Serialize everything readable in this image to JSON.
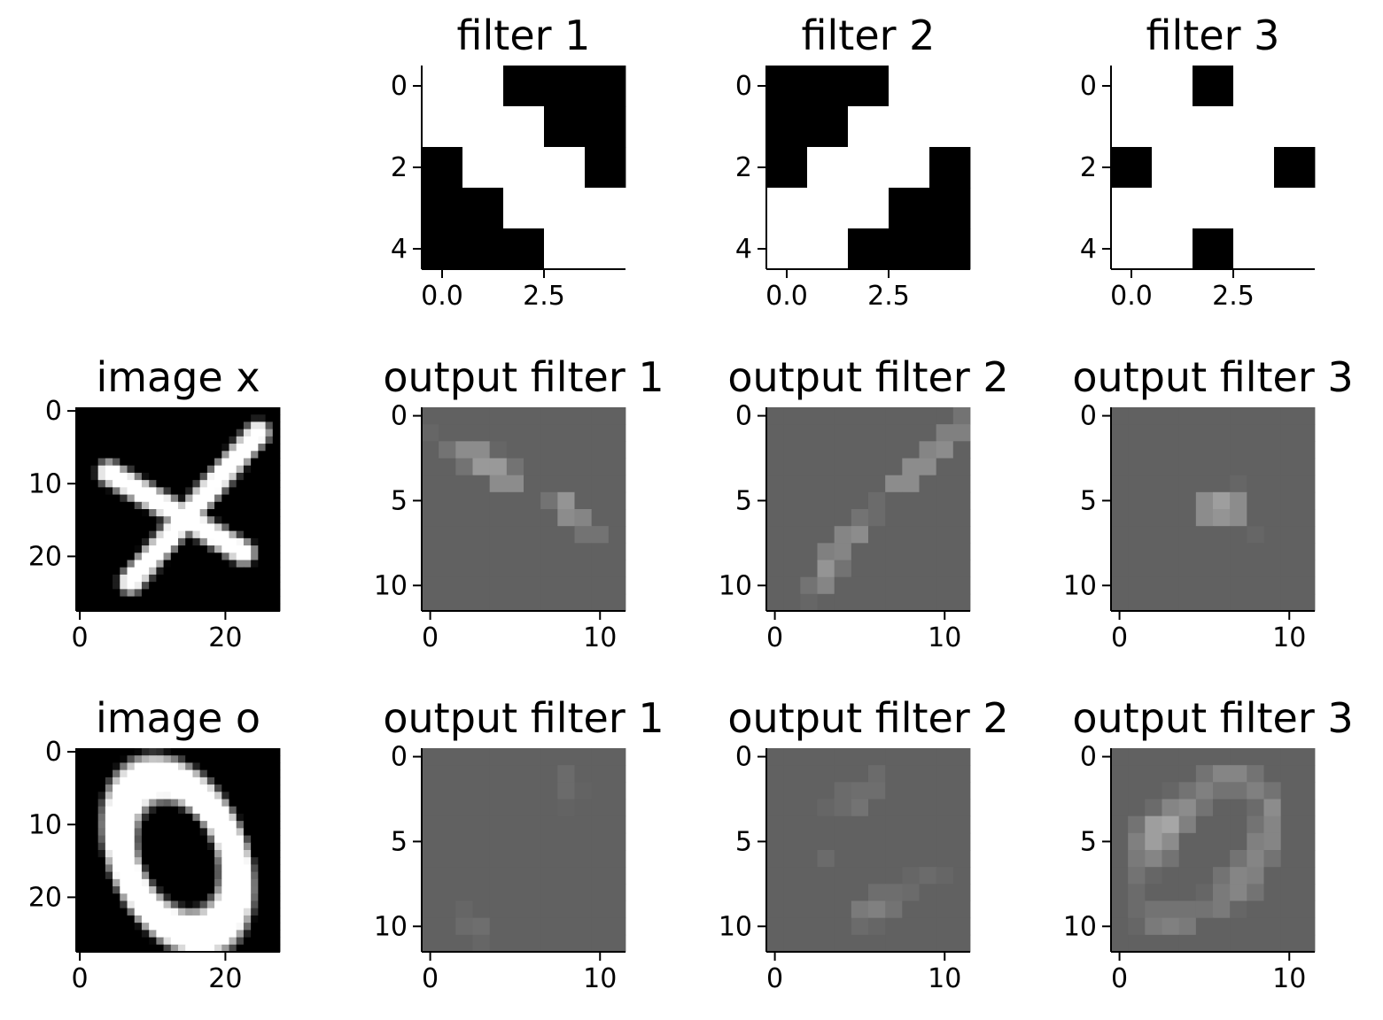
{
  "colors": {
    "background": "#ffffff",
    "ink": "#000000"
  },
  "chart_data": [
    {
      "type": "heatmap",
      "title": "filter 1",
      "colormap": "gray",
      "xticks": [
        "0.0",
        "2.5"
      ],
      "yticks": [
        "0",
        "2",
        "4"
      ],
      "values": [
        [
          1,
          1,
          0,
          0,
          0
        ],
        [
          1,
          1,
          1,
          0,
          0
        ],
        [
          0,
          1,
          1,
          1,
          0
        ],
        [
          0,
          0,
          1,
          1,
          1
        ],
        [
          0,
          0,
          0,
          1,
          1
        ]
      ]
    },
    {
      "type": "heatmap",
      "title": "filter 2",
      "colormap": "gray",
      "xticks": [
        "0.0",
        "2.5"
      ],
      "yticks": [
        "0",
        "2",
        "4"
      ],
      "values": [
        [
          0,
          0,
          0,
          1,
          1
        ],
        [
          0,
          0,
          1,
          1,
          1
        ],
        [
          0,
          1,
          1,
          1,
          0
        ],
        [
          1,
          1,
          1,
          0,
          0
        ],
        [
          1,
          1,
          0,
          0,
          0
        ]
      ]
    },
    {
      "type": "heatmap",
      "title": "filter 3",
      "colormap": "gray",
      "xticks": [
        "0.0",
        "2.5"
      ],
      "yticks": [
        "0",
        "2",
        "4"
      ],
      "values": [
        [
          1,
          1,
          0,
          1,
          1
        ],
        [
          1,
          1,
          1,
          1,
          1
        ],
        [
          0,
          1,
          1,
          1,
          0
        ],
        [
          1,
          1,
          1,
          1,
          1
        ],
        [
          1,
          1,
          0,
          1,
          1
        ]
      ]
    },
    {
      "type": "heatmap",
      "title": "image x",
      "colormap": "gray",
      "image": "x",
      "xticks": [
        "0",
        "20"
      ],
      "yticks": [
        "0",
        "10",
        "20"
      ]
    },
    {
      "type": "heatmap",
      "title": "output filter 1",
      "colormap": "gray",
      "xticks": [
        "0",
        "10"
      ],
      "yticks": [
        "0",
        "5",
        "10"
      ],
      "values": [
        [
          0.38,
          0.38,
          0.38,
          0.38,
          0.38,
          0.38,
          0.38,
          0.38,
          0.38,
          0.38,
          0.38,
          0.38
        ],
        [
          0.4,
          0.38,
          0.38,
          0.38,
          0.38,
          0.38,
          0.38,
          0.38,
          0.38,
          0.38,
          0.38,
          0.38
        ],
        [
          0.38,
          0.45,
          0.55,
          0.55,
          0.4,
          0.38,
          0.38,
          0.38,
          0.38,
          0.38,
          0.38,
          0.38
        ],
        [
          0.38,
          0.38,
          0.45,
          0.6,
          0.6,
          0.45,
          0.38,
          0.38,
          0.38,
          0.38,
          0.38,
          0.38
        ],
        [
          0.38,
          0.38,
          0.38,
          0.38,
          0.55,
          0.55,
          0.38,
          0.38,
          0.38,
          0.38,
          0.38,
          0.38
        ],
        [
          0.38,
          0.38,
          0.38,
          0.38,
          0.38,
          0.38,
          0.38,
          0.45,
          0.58,
          0.38,
          0.38,
          0.38
        ],
        [
          0.38,
          0.38,
          0.38,
          0.38,
          0.38,
          0.38,
          0.38,
          0.38,
          0.55,
          0.52,
          0.38,
          0.38
        ],
        [
          0.38,
          0.38,
          0.38,
          0.38,
          0.38,
          0.38,
          0.38,
          0.38,
          0.38,
          0.45,
          0.45,
          0.38
        ],
        [
          0.38,
          0.38,
          0.38,
          0.38,
          0.38,
          0.38,
          0.38,
          0.38,
          0.38,
          0.38,
          0.38,
          0.38
        ],
        [
          0.38,
          0.38,
          0.38,
          0.38,
          0.38,
          0.38,
          0.38,
          0.38,
          0.38,
          0.38,
          0.38,
          0.38
        ],
        [
          0.38,
          0.38,
          0.38,
          0.38,
          0.38,
          0.38,
          0.38,
          0.38,
          0.38,
          0.38,
          0.38,
          0.38
        ],
        [
          0.38,
          0.38,
          0.38,
          0.38,
          0.38,
          0.38,
          0.38,
          0.38,
          0.38,
          0.38,
          0.38,
          0.38
        ]
      ]
    },
    {
      "type": "heatmap",
      "title": "output filter 2",
      "colormap": "gray",
      "xticks": [
        "0",
        "10"
      ],
      "yticks": [
        "0",
        "5",
        "10"
      ],
      "values": [
        [
          0.38,
          0.38,
          0.38,
          0.38,
          0.38,
          0.38,
          0.38,
          0.38,
          0.38,
          0.38,
          0.38,
          0.45
        ],
        [
          0.38,
          0.38,
          0.38,
          0.38,
          0.38,
          0.38,
          0.38,
          0.38,
          0.38,
          0.38,
          0.5,
          0.5
        ],
        [
          0.38,
          0.38,
          0.38,
          0.38,
          0.38,
          0.38,
          0.38,
          0.38,
          0.38,
          0.52,
          0.55,
          0.38
        ],
        [
          0.38,
          0.38,
          0.38,
          0.38,
          0.38,
          0.38,
          0.38,
          0.38,
          0.55,
          0.55,
          0.38,
          0.38
        ],
        [
          0.38,
          0.38,
          0.38,
          0.38,
          0.38,
          0.38,
          0.38,
          0.55,
          0.55,
          0.38,
          0.38,
          0.38
        ],
        [
          0.38,
          0.38,
          0.38,
          0.38,
          0.38,
          0.38,
          0.42,
          0.38,
          0.38,
          0.38,
          0.38,
          0.38
        ],
        [
          0.38,
          0.38,
          0.38,
          0.38,
          0.38,
          0.45,
          0.42,
          0.38,
          0.38,
          0.38,
          0.38,
          0.38
        ],
        [
          0.38,
          0.38,
          0.38,
          0.38,
          0.52,
          0.55,
          0.38,
          0.38,
          0.38,
          0.38,
          0.38,
          0.38
        ],
        [
          0.38,
          0.38,
          0.38,
          0.5,
          0.52,
          0.38,
          0.38,
          0.38,
          0.38,
          0.38,
          0.38,
          0.38
        ],
        [
          0.38,
          0.38,
          0.38,
          0.58,
          0.45,
          0.38,
          0.38,
          0.38,
          0.38,
          0.38,
          0.38,
          0.38
        ],
        [
          0.38,
          0.38,
          0.45,
          0.52,
          0.38,
          0.38,
          0.38,
          0.38,
          0.38,
          0.38,
          0.38,
          0.38
        ],
        [
          0.38,
          0.38,
          0.4,
          0.38,
          0.38,
          0.38,
          0.38,
          0.38,
          0.38,
          0.38,
          0.38,
          0.38
        ]
      ]
    },
    {
      "type": "heatmap",
      "title": "output filter 3",
      "colormap": "gray",
      "xticks": [
        "0",
        "10"
      ],
      "yticks": [
        "0",
        "5",
        "10"
      ],
      "values": [
        [
          0.38,
          0.38,
          0.38,
          0.38,
          0.38,
          0.38,
          0.38,
          0.38,
          0.38,
          0.38,
          0.38,
          0.38
        ],
        [
          0.38,
          0.38,
          0.38,
          0.38,
          0.38,
          0.38,
          0.38,
          0.38,
          0.38,
          0.38,
          0.38,
          0.38
        ],
        [
          0.38,
          0.38,
          0.38,
          0.38,
          0.38,
          0.38,
          0.38,
          0.38,
          0.38,
          0.38,
          0.38,
          0.38
        ],
        [
          0.38,
          0.38,
          0.38,
          0.38,
          0.38,
          0.38,
          0.38,
          0.38,
          0.38,
          0.38,
          0.38,
          0.38
        ],
        [
          0.38,
          0.38,
          0.38,
          0.38,
          0.38,
          0.38,
          0.38,
          0.4,
          0.38,
          0.38,
          0.38,
          0.38
        ],
        [
          0.38,
          0.38,
          0.38,
          0.38,
          0.38,
          0.55,
          0.62,
          0.55,
          0.38,
          0.38,
          0.38,
          0.38
        ],
        [
          0.38,
          0.38,
          0.38,
          0.38,
          0.38,
          0.55,
          0.58,
          0.55,
          0.38,
          0.38,
          0.38,
          0.38
        ],
        [
          0.38,
          0.38,
          0.38,
          0.38,
          0.38,
          0.38,
          0.38,
          0.38,
          0.4,
          0.38,
          0.38,
          0.38
        ],
        [
          0.38,
          0.38,
          0.38,
          0.38,
          0.38,
          0.38,
          0.38,
          0.38,
          0.38,
          0.38,
          0.38,
          0.38
        ],
        [
          0.38,
          0.38,
          0.38,
          0.38,
          0.38,
          0.38,
          0.38,
          0.38,
          0.38,
          0.38,
          0.38,
          0.38
        ],
        [
          0.38,
          0.38,
          0.38,
          0.38,
          0.38,
          0.38,
          0.38,
          0.38,
          0.38,
          0.38,
          0.38,
          0.38
        ],
        [
          0.38,
          0.38,
          0.38,
          0.38,
          0.38,
          0.38,
          0.38,
          0.38,
          0.38,
          0.38,
          0.38,
          0.38
        ]
      ]
    },
    {
      "type": "heatmap",
      "title": "image o",
      "colormap": "gray",
      "image": "o",
      "xticks": [
        "0",
        "20"
      ],
      "yticks": [
        "0",
        "10",
        "20"
      ]
    },
    {
      "type": "heatmap",
      "title": "output filter 1",
      "colormap": "gray",
      "xticks": [
        "0",
        "10"
      ],
      "yticks": [
        "0",
        "5",
        "10"
      ],
      "values": [
        [
          0.38,
          0.38,
          0.38,
          0.38,
          0.38,
          0.38,
          0.38,
          0.38,
          0.38,
          0.38,
          0.38,
          0.38
        ],
        [
          0.38,
          0.38,
          0.38,
          0.38,
          0.38,
          0.38,
          0.38,
          0.38,
          0.42,
          0.38,
          0.38,
          0.38
        ],
        [
          0.38,
          0.38,
          0.38,
          0.38,
          0.38,
          0.38,
          0.38,
          0.38,
          0.42,
          0.39,
          0.38,
          0.38
        ],
        [
          0.38,
          0.38,
          0.38,
          0.38,
          0.38,
          0.38,
          0.38,
          0.38,
          0.39,
          0.38,
          0.38,
          0.38
        ],
        [
          0.38,
          0.38,
          0.38,
          0.38,
          0.38,
          0.38,
          0.38,
          0.38,
          0.38,
          0.38,
          0.38,
          0.38
        ],
        [
          0.38,
          0.38,
          0.38,
          0.38,
          0.38,
          0.38,
          0.38,
          0.38,
          0.38,
          0.38,
          0.38,
          0.38
        ],
        [
          0.38,
          0.38,
          0.38,
          0.38,
          0.38,
          0.38,
          0.38,
          0.38,
          0.38,
          0.38,
          0.38,
          0.38
        ],
        [
          0.38,
          0.38,
          0.38,
          0.38,
          0.38,
          0.38,
          0.38,
          0.38,
          0.38,
          0.38,
          0.38,
          0.38
        ],
        [
          0.38,
          0.38,
          0.38,
          0.38,
          0.38,
          0.38,
          0.38,
          0.38,
          0.38,
          0.38,
          0.38,
          0.38
        ],
        [
          0.38,
          0.38,
          0.4,
          0.38,
          0.38,
          0.38,
          0.38,
          0.38,
          0.38,
          0.38,
          0.38,
          0.38
        ],
        [
          0.38,
          0.38,
          0.42,
          0.43,
          0.38,
          0.38,
          0.38,
          0.38,
          0.38,
          0.38,
          0.38,
          0.38
        ],
        [
          0.38,
          0.38,
          0.38,
          0.4,
          0.38,
          0.38,
          0.38,
          0.38,
          0.38,
          0.38,
          0.38,
          0.38
        ]
      ]
    },
    {
      "type": "heatmap",
      "title": "output filter 2",
      "colormap": "gray",
      "xticks": [
        "0",
        "10"
      ],
      "yticks": [
        "0",
        "5",
        "10"
      ],
      "values": [
        [
          0.38,
          0.38,
          0.38,
          0.38,
          0.38,
          0.38,
          0.38,
          0.38,
          0.38,
          0.38,
          0.38,
          0.38
        ],
        [
          0.38,
          0.38,
          0.38,
          0.38,
          0.38,
          0.38,
          0.42,
          0.38,
          0.38,
          0.38,
          0.38,
          0.38
        ],
        [
          0.38,
          0.38,
          0.38,
          0.38,
          0.42,
          0.43,
          0.43,
          0.38,
          0.38,
          0.38,
          0.38,
          0.38
        ],
        [
          0.38,
          0.38,
          0.38,
          0.4,
          0.42,
          0.45,
          0.38,
          0.38,
          0.38,
          0.38,
          0.38,
          0.38
        ],
        [
          0.38,
          0.38,
          0.38,
          0.38,
          0.38,
          0.38,
          0.38,
          0.38,
          0.38,
          0.38,
          0.38,
          0.38
        ],
        [
          0.38,
          0.38,
          0.38,
          0.38,
          0.38,
          0.38,
          0.38,
          0.38,
          0.38,
          0.38,
          0.38,
          0.38
        ],
        [
          0.38,
          0.38,
          0.38,
          0.42,
          0.38,
          0.38,
          0.38,
          0.38,
          0.38,
          0.38,
          0.38,
          0.38
        ],
        [
          0.38,
          0.38,
          0.38,
          0.38,
          0.38,
          0.38,
          0.38,
          0.38,
          0.4,
          0.42,
          0.4,
          0.38
        ],
        [
          0.38,
          0.38,
          0.38,
          0.38,
          0.38,
          0.38,
          0.43,
          0.43,
          0.42,
          0.38,
          0.38,
          0.38
        ],
        [
          0.38,
          0.38,
          0.38,
          0.38,
          0.38,
          0.48,
          0.5,
          0.45,
          0.38,
          0.38,
          0.38,
          0.38
        ],
        [
          0.38,
          0.38,
          0.38,
          0.38,
          0.38,
          0.42,
          0.4,
          0.38,
          0.38,
          0.38,
          0.38,
          0.38
        ],
        [
          0.38,
          0.38,
          0.38,
          0.38,
          0.38,
          0.38,
          0.38,
          0.38,
          0.38,
          0.38,
          0.38,
          0.38
        ]
      ]
    },
    {
      "type": "heatmap",
      "title": "output filter 3",
      "colormap": "gray",
      "xticks": [
        "0",
        "10"
      ],
      "yticks": [
        "0",
        "5",
        "10"
      ],
      "values": [
        [
          0.38,
          0.38,
          0.38,
          0.38,
          0.38,
          0.38,
          0.38,
          0.38,
          0.38,
          0.38,
          0.38,
          0.38
        ],
        [
          0.38,
          0.38,
          0.38,
          0.38,
          0.38,
          0.45,
          0.52,
          0.52,
          0.45,
          0.38,
          0.38,
          0.38
        ],
        [
          0.38,
          0.38,
          0.38,
          0.4,
          0.45,
          0.5,
          0.45,
          0.45,
          0.5,
          0.45,
          0.38,
          0.38
        ],
        [
          0.38,
          0.38,
          0.42,
          0.52,
          0.55,
          0.45,
          0.38,
          0.38,
          0.42,
          0.55,
          0.38,
          0.38
        ],
        [
          0.38,
          0.45,
          0.62,
          0.65,
          0.5,
          0.38,
          0.38,
          0.38,
          0.45,
          0.52,
          0.38,
          0.38
        ],
        [
          0.38,
          0.5,
          0.62,
          0.55,
          0.38,
          0.38,
          0.38,
          0.38,
          0.5,
          0.52,
          0.38,
          0.38
        ],
        [
          0.38,
          0.48,
          0.52,
          0.45,
          0.38,
          0.38,
          0.38,
          0.45,
          0.52,
          0.45,
          0.38,
          0.38
        ],
        [
          0.38,
          0.45,
          0.4,
          0.38,
          0.38,
          0.38,
          0.45,
          0.52,
          0.5,
          0.38,
          0.38,
          0.38
        ],
        [
          0.38,
          0.42,
          0.38,
          0.38,
          0.38,
          0.4,
          0.48,
          0.52,
          0.45,
          0.38,
          0.38,
          0.38
        ],
        [
          0.38,
          0.42,
          0.45,
          0.45,
          0.45,
          0.45,
          0.48,
          0.4,
          0.38,
          0.38,
          0.38,
          0.38
        ],
        [
          0.38,
          0.4,
          0.48,
          0.5,
          0.48,
          0.38,
          0.38,
          0.38,
          0.38,
          0.38,
          0.38,
          0.38
        ],
        [
          0.38,
          0.38,
          0.38,
          0.38,
          0.38,
          0.38,
          0.38,
          0.38,
          0.38,
          0.38,
          0.38,
          0.38
        ]
      ]
    }
  ]
}
